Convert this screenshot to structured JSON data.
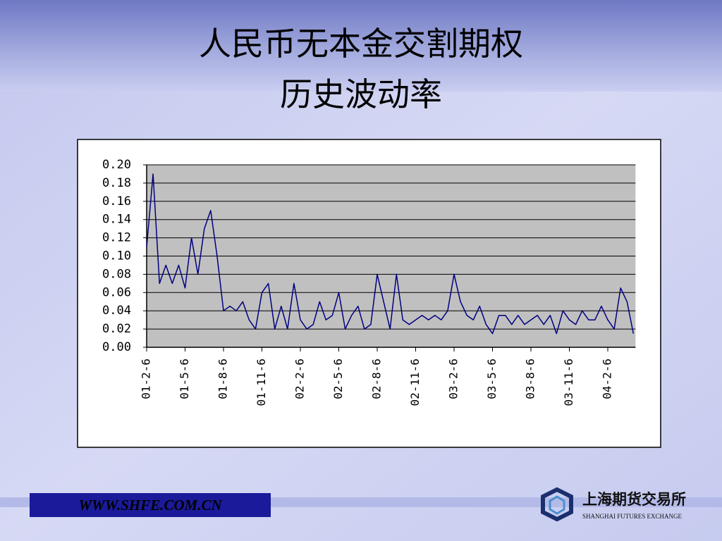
{
  "chart_data": {
    "type": "line",
    "title": "人民币无本金交割期权",
    "subtitle": "历史波动率",
    "categories": [
      "01-2-6",
      null,
      null,
      null,
      null,
      null,
      "01-5-6",
      null,
      null,
      null,
      null,
      null,
      "01-8-6",
      null,
      null,
      null,
      null,
      null,
      "01-11-6",
      null,
      null,
      null,
      null,
      null,
      "02-2-6",
      null,
      null,
      null,
      null,
      null,
      "02-5-6",
      null,
      null,
      null,
      null,
      null,
      "02-8-6",
      null,
      null,
      null,
      null,
      null,
      "02-11-6",
      null,
      null,
      null,
      null,
      null,
      "03-2-6",
      null,
      null,
      null,
      null,
      null,
      "03-5-6",
      null,
      null,
      null,
      null,
      null,
      "03-8-6",
      null,
      null,
      null,
      null,
      null,
      "03-11-6",
      null,
      null,
      null,
      null,
      null,
      "04-2-6",
      null,
      null,
      null,
      null
    ],
    "series": [
      {
        "color": "#000080",
        "values": [
          0.11,
          0.19,
          0.07,
          0.09,
          0.07,
          0.09,
          0.065,
          0.12,
          0.08,
          0.13,
          0.15,
          0.1,
          0.04,
          0.045,
          0.04,
          0.05,
          0.03,
          0.02,
          0.06,
          0.07,
          0.02,
          0.045,
          0.02,
          0.07,
          0.03,
          0.02,
          0.025,
          0.05,
          0.03,
          0.035,
          0.06,
          0.02,
          0.035,
          0.045,
          0.02,
          0.025,
          0.08,
          0.05,
          0.02,
          0.08,
          0.03,
          0.025,
          0.03,
          0.035,
          0.03,
          0.035,
          0.03,
          0.04,
          0.08,
          0.05,
          0.035,
          0.03,
          0.045,
          0.025,
          0.015,
          0.035,
          0.035,
          0.025,
          0.035,
          0.025,
          0.03,
          0.035,
          0.025,
          0.035,
          0.015,
          0.04,
          0.03,
          0.025,
          0.04,
          0.03,
          0.03,
          0.045,
          0.03,
          0.02,
          0.065,
          0.05,
          0.015
        ]
      }
    ],
    "ylim": [
      0,
      0.2
    ],
    "yticks": [
      {
        "value": 0,
        "label": "0.00"
      },
      0.02,
      0.04,
      0.06,
      0.08,
      {
        "value": 0.1,
        "label": "0.10"
      },
      0.12,
      0.14,
      0.16,
      0.18,
      {
        "value": 0.2,
        "label": "0.20"
      }
    ],
    "grid": true,
    "plot_background": "#c0c0c0"
  },
  "footer": {
    "url": "WWW.SHFE.COM.CN",
    "logo_cn": "上海期货交易所",
    "logo_en": "SHANGHAI FUTURES EXCHANGE"
  }
}
